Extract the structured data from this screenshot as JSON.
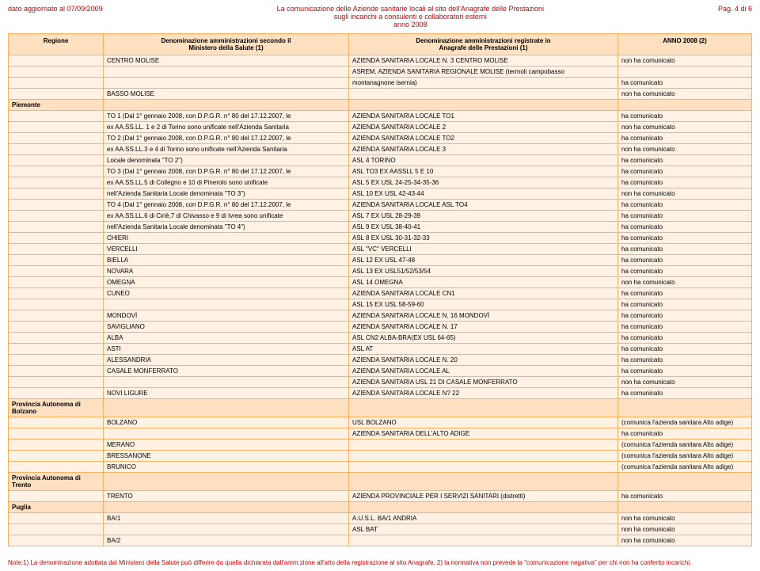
{
  "header": {
    "date_label": "dato aggiornato al 07/09/2009",
    "title_line1": "La comunicazione delle Aziende sanitarie locali al sito dell'Anagrafe delle Prestazioni",
    "title_line2": "sugli incarichi a consulenti e collaboratori esterni",
    "title_line3": "anno 2008",
    "page_label": "Pag. 4 di 6"
  },
  "columns": {
    "c1_line1": "Regione",
    "c2_line1": "Denominazione amministrazioni secondo il",
    "c2_line2": "Ministero della Salute (1)",
    "c3_line1": "Denominazione amministrazioni registrate in",
    "c3_line2": "Anagrafe delle Prestazioni (1)",
    "c4_line1": "ANNO 2008 (2)"
  },
  "colors": {
    "header_bg": "#ffe0c0",
    "row_bg": "#fff2e4",
    "border": "#ffb060",
    "title_color": "#cc0000"
  },
  "rows": [
    {
      "r": "",
      "m": "CENTRO MOLISE",
      "a": "AZIENDA SANITARIA LOCALE N. 3 CENTRO MOLISE",
      "s": "non ha comunicato"
    },
    {
      "r": "",
      "m": "",
      "a": "ASREM. AZIENDA SANITARIA REGIONALE MOLISE (termoli campobasso",
      "s": ""
    },
    {
      "r": "",
      "m": "",
      "a": "montanagnone isernia)",
      "s": "ha comunicato"
    },
    {
      "r": "",
      "m": "BASSO MOLISE",
      "a": "",
      "s": "non ha comunicato"
    },
    {
      "region": "Piemonte"
    },
    {
      "r": "",
      "m": "TO 1 (Dal 1° gennaio 2008, con D.P.G.R. n° 80 del 17.12.2007, le",
      "a": "AZIENDA SANITARIA LOCALE TO1",
      "s": "ha comunicato"
    },
    {
      "r": "",
      "m": "ex AA.SS.LL. 1 e 2 di Torino sono unificate nell'Azienda Sanitaria",
      "a": "AZIENDA SANITARIA LOCALE 2",
      "s": "non ha comunicato"
    },
    {
      "r": "",
      "m": "TO 2 (Dal 1° gennaio 2008, con D.P.G.R. n° 80 del 17.12.2007, le",
      "a": "AZIENDA SANITARIA LOCALE TO2",
      "s": "ha comunicato"
    },
    {
      "r": "",
      "m": "ex AA.SS.LL.3 e 4 di Torino sono unificate nell'Azienda Sanitaria",
      "a": "AZIENDA SANITARIA LOCALE 3",
      "s": "non ha comunicato"
    },
    {
      "r": "",
      "m": "Locale denominata \"TO 2\")",
      "a": "ASL 4 TORINO",
      "s": "ha comunicato"
    },
    {
      "r": "",
      "m": "TO 3 (Dal 1° gennaio 2008, con D.P.G.R. n° 80 del 17.12.2007, le",
      "a": "ASL TO3 EX AASSLL 5 E 10",
      "s": "ha comunicato"
    },
    {
      "r": "",
      "m": "ex AA.SS.LL.5 di Collegno e 10 di Pinerolo sono unificate",
      "a": "ASL 5 EX USL 24-25-34-35-36",
      "s": "ha comunicato"
    },
    {
      "r": "",
      "m": "nell'Azienda Sanitaria Locale denominata \"TO 3\")",
      "a": "ASL 10 EX USL 42-43-44",
      "s": "non ha comunicato"
    },
    {
      "r": "",
      "m": "TO 4 (Dal 1° gennaio 2008, con D.P.G.R. n° 80 del 17.12.2007, le",
      "a": "AZIENDA SANITARIA LOCALE ASL TO4",
      "s": "ha comunicato"
    },
    {
      "r": "",
      "m": "ex AA.SS.LL.6 di Ciriè,7 di Chivasso e 9 di Ivrea sono unificate",
      "a": "ASL 7 EX USL 28-29-39",
      "s": "ha comunicato"
    },
    {
      "r": "",
      "m": "nell'Azienda Sanitaria Locale denominata \"TO 4\")",
      "a": "ASL 9 EX USL 38-40-41",
      "s": "ha comunicato"
    },
    {
      "r": "",
      "m": "CHIERI",
      "a": "ASL 8 EX USL 30-31-32-33",
      "s": "ha comunicato"
    },
    {
      "r": "",
      "m": "VERCELLI",
      "a": "ASL \"VC\" VERCELLI",
      "s": "ha comunicato"
    },
    {
      "r": "",
      "m": "BIELLA",
      "a": "ASL 12 EX USL 47-48",
      "s": "ha comunicato"
    },
    {
      "r": "",
      "m": "NOVARA",
      "a": "ASL 13 EX USL51/52/53/54",
      "s": "ha comunicato"
    },
    {
      "r": "",
      "m": "OMEGNA",
      "a": "ASL 14 OMEGNA",
      "s": "non ha comunicato"
    },
    {
      "r": "",
      "m": "CUNEO",
      "a": "AZIENDA SANITARIA LOCALE CN1",
      "s": "ha comunicato"
    },
    {
      "r": "",
      "m": "",
      "a": "ASL 15 EX USL 58-59-60",
      "s": "ha comunicato"
    },
    {
      "r": "",
      "m": "MONDOVÌ",
      "a": "AZIENDA SANITARIA LOCALE N. 16 MONDOVÌ",
      "s": "ha comunicato"
    },
    {
      "r": "",
      "m": "SAVIGLIANO",
      "a": "AZIENDA SANITARIA LOCALE N. 17",
      "s": "ha comunicato"
    },
    {
      "r": "",
      "m": "ALBA",
      "a": "ASL CN2 ALBA-BRA(EX USL 64-65)",
      "s": "ha comunicato"
    },
    {
      "r": "",
      "m": "ASTI",
      "a": "ASL AT",
      "s": "ha comunicato"
    },
    {
      "r": "",
      "m": "ALESSANDRIA",
      "a": "AZIENDA SANITARIA LOCALE N. 20",
      "s": "ha comunicato"
    },
    {
      "r": "",
      "m": "CASALE MONFERRATO",
      "a": "AZIENDA SANITARIA LOCALE AL",
      "s": "ha comunicato"
    },
    {
      "r": "",
      "m": "",
      "a": "AZIENDA SANITARIA USL 21 DI CASALE MONFERRATO",
      "s": "non ha comunicato"
    },
    {
      "r": "",
      "m": "NOVI LIGURE",
      "a": "AZIENDA SANITARIA LOCALE N? 22",
      "s": "ha comunicato"
    },
    {
      "region": "Provincia Autonoma di Bolzano"
    },
    {
      "r": "",
      "m": "BOLZANO",
      "a": "USL BOLZANO",
      "s": "(comunica l'azienda sanitara Alto adige)"
    },
    {
      "r": "",
      "m": "",
      "a": "AZIENDA SANITARIA DELL'ALTO ADIGE",
      "s": "ha comunicato"
    },
    {
      "r": "",
      "m": "MERANO",
      "a": "",
      "s": "(comunica l'azienda sanitara Alto adige)"
    },
    {
      "r": "",
      "m": "BRESSANONE",
      "a": "",
      "s": "(comunica l'azienda sanitara Alto adige)"
    },
    {
      "r": "",
      "m": "BRUNICO",
      "a": "",
      "s": "(comunica l'azienda sanitara Alto adige)"
    },
    {
      "region": "Provincia Autonoma di Trento"
    },
    {
      "r": "",
      "m": "TRENTO",
      "a": "AZIENDA PROVINCIALE PER I SERVIZI SANITARI (distretti)",
      "s": "ha comunicato"
    },
    {
      "region": "Puglia"
    },
    {
      "r": "",
      "m": "BA/1",
      "a": "A.U.S.L. BA/1 ANDRIA",
      "s": "non ha comunicato"
    },
    {
      "r": "",
      "m": "",
      "a": "ASL BAT",
      "s": "non ha comunicato"
    },
    {
      "r": "",
      "m": "BA/2",
      "a": "",
      "s": "non ha comunicato"
    }
  ],
  "footnote": "Note:1) La denominazione adottata dal Ministero della Salute può differire da quella dichiarata dall'amm.zione all'atto della registrazione al sito Anagrafe. 2) la normativa non prevede la \"comunicazione negativa\" per chi non ha conferito incarichi."
}
